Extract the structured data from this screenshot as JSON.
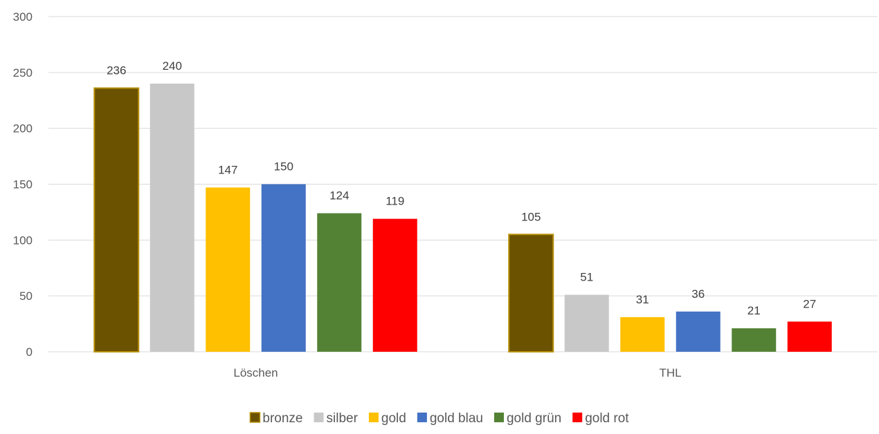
{
  "chart_data": {
    "type": "bar",
    "title": "",
    "xlabel": "",
    "ylabel": "",
    "categories": [
      "Löschen",
      "THL"
    ],
    "series": [
      {
        "name": "bronze",
        "values": [
          236,
          105
        ],
        "color": "#6b5200",
        "border": "#b8900a"
      },
      {
        "name": "silber",
        "values": [
          240,
          51
        ],
        "color": "#c8c8c8"
      },
      {
        "name": "gold",
        "values": [
          147,
          31
        ],
        "color": "#ffc000"
      },
      {
        "name": "gold blau",
        "values": [
          150,
          36
        ],
        "color": "#4472c4"
      },
      {
        "name": "gold grün",
        "values": [
          124,
          21
        ],
        "color": "#548235"
      },
      {
        "name": "gold rot",
        "values": [
          119,
          27
        ],
        "color": "#ff0000"
      }
    ],
    "ylim": [
      0,
      300
    ],
    "yticks": [
      0,
      50,
      100,
      150,
      200,
      250,
      300
    ],
    "grid": true,
    "legend": "bottom",
    "data_labels": true
  }
}
